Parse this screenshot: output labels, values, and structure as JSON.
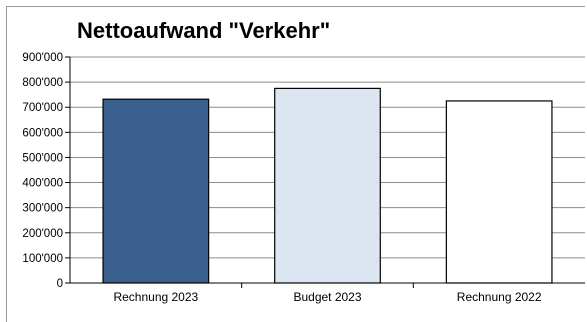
{
  "chart_data": {
    "type": "bar",
    "title": "Nettoaufwand \"Verkehr\"",
    "categories": [
      "Rechnung 2023",
      "Budget 2023",
      "Rechnung 2022"
    ],
    "values": [
      732000,
      775000,
      725000
    ],
    "colors": [
      "#3a6090",
      "#dce6f2",
      "#ffffff"
    ],
    "ylim": [
      0,
      900000
    ],
    "yticks": [
      0,
      100000,
      200000,
      300000,
      400000,
      500000,
      600000,
      700000,
      800000,
      900000
    ],
    "ytick_labels": [
      "0",
      "100'000",
      "200'000",
      "300'000",
      "400'000",
      "500'000",
      "600'000",
      "700'000",
      "800'000",
      "900'000"
    ],
    "grid": true,
    "xlabel": "",
    "ylabel": ""
  }
}
